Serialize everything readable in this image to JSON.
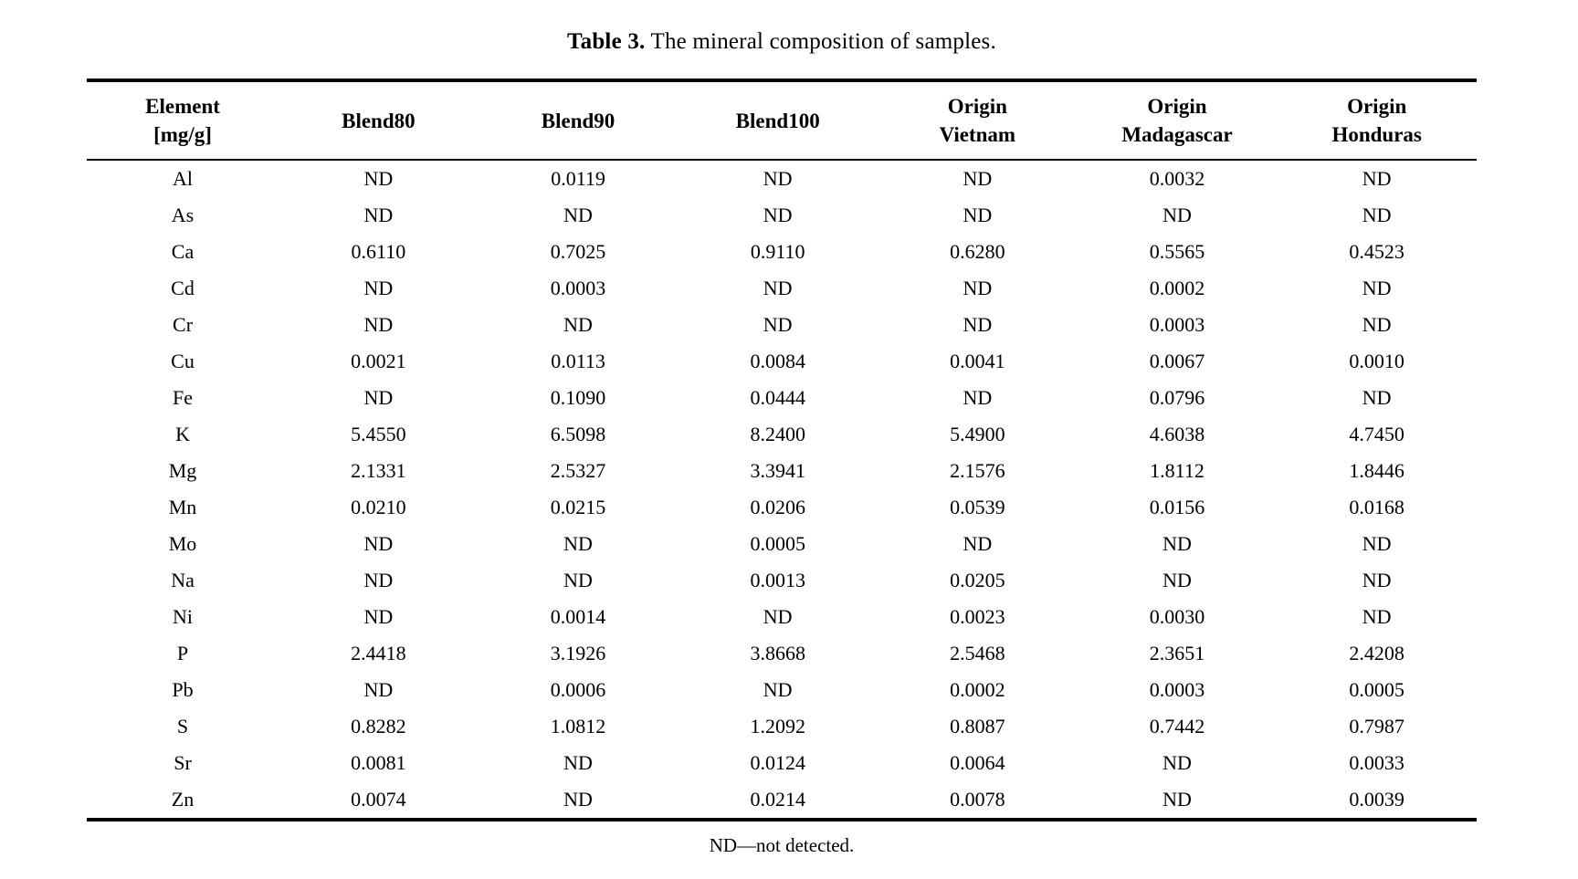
{
  "caption": {
    "label": "Table 3.",
    "text": " The mineral composition of samples."
  },
  "table": {
    "headers": [
      {
        "line1": "Element",
        "line2": "[mg/g]"
      },
      {
        "line1": "Blend80",
        "line2": ""
      },
      {
        "line1": "Blend90",
        "line2": ""
      },
      {
        "line1": "Blend100",
        "line2": ""
      },
      {
        "line1": "Origin",
        "line2": "Vietnam"
      },
      {
        "line1": "Origin",
        "line2": "Madagascar"
      },
      {
        "line1": "Origin",
        "line2": "Honduras"
      }
    ],
    "rows": [
      {
        "element": "Al",
        "values": [
          "ND",
          "0.0119",
          "ND",
          "ND",
          "0.0032",
          "ND"
        ]
      },
      {
        "element": "As",
        "values": [
          "ND",
          "ND",
          "ND",
          "ND",
          "ND",
          "ND"
        ]
      },
      {
        "element": "Ca",
        "values": [
          "0.6110",
          "0.7025",
          "0.9110",
          "0.6280",
          "0.5565",
          "0.4523"
        ]
      },
      {
        "element": "Cd",
        "values": [
          "ND",
          "0.0003",
          "ND",
          "ND",
          "0.0002",
          "ND"
        ]
      },
      {
        "element": "Cr",
        "values": [
          "ND",
          "ND",
          "ND",
          "ND",
          "0.0003",
          "ND"
        ]
      },
      {
        "element": "Cu",
        "values": [
          "0.0021",
          "0.0113",
          "0.0084",
          "0.0041",
          "0.0067",
          "0.0010"
        ]
      },
      {
        "element": "Fe",
        "values": [
          "ND",
          "0.1090",
          "0.0444",
          "ND",
          "0.0796",
          "ND"
        ]
      },
      {
        "element": "K",
        "values": [
          "5.4550",
          "6.5098",
          "8.2400",
          "5.4900",
          "4.6038",
          "4.7450"
        ]
      },
      {
        "element": "Mg",
        "values": [
          "2.1331",
          "2.5327",
          "3.3941",
          "2.1576",
          "1.8112",
          "1.8446"
        ]
      },
      {
        "element": "Mn",
        "values": [
          "0.0210",
          "0.0215",
          "0.0206",
          "0.0539",
          "0.0156",
          "0.0168"
        ]
      },
      {
        "element": "Mo",
        "values": [
          "ND",
          "ND",
          "0.0005",
          "ND",
          "ND",
          "ND"
        ]
      },
      {
        "element": "Na",
        "values": [
          "ND",
          "ND",
          "0.0013",
          "0.0205",
          "ND",
          "ND"
        ]
      },
      {
        "element": "Ni",
        "values": [
          "ND",
          "0.0014",
          "ND",
          "0.0023",
          "0.0030",
          "ND"
        ]
      },
      {
        "element": "P",
        "values": [
          "2.4418",
          "3.1926",
          "3.8668",
          "2.5468",
          "2.3651",
          "2.4208"
        ]
      },
      {
        "element": "Pb",
        "values": [
          "ND",
          "0.0006",
          "ND",
          "0.0002",
          "0.0003",
          "0.0005"
        ]
      },
      {
        "element": "S",
        "values": [
          "0.8282",
          "1.0812",
          "1.2092",
          "0.8087",
          "0.7442",
          "0.7987"
        ]
      },
      {
        "element": "Sr",
        "values": [
          "0.0081",
          "ND",
          "0.0124",
          "0.0064",
          "ND",
          "0.0033"
        ]
      },
      {
        "element": "Zn",
        "values": [
          "0.0074",
          "ND",
          "0.0214",
          "0.0078",
          "ND",
          "0.0039"
        ]
      }
    ]
  },
  "footnote": "ND—not detected."
}
